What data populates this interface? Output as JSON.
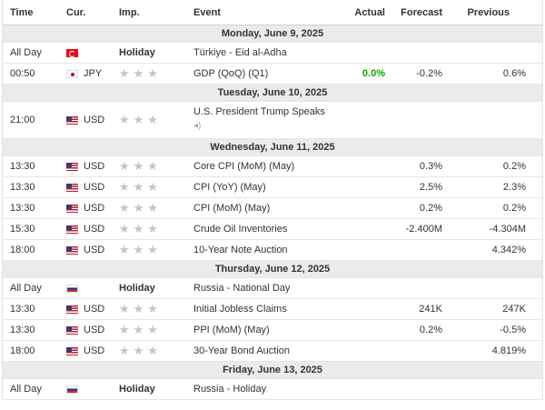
{
  "header": {
    "time": "Time",
    "currency": "Cur.",
    "importance": "Imp.",
    "event": "Event",
    "actual": "Actual",
    "forecast": "Forecast",
    "previous": "Previous"
  },
  "importance_glyph": "★★★",
  "days": [
    {
      "label": "Monday, June 9, 2025",
      "events": [
        {
          "time": "All Day",
          "flag": "turkey-flag-icon",
          "currency": "",
          "importance": "Holiday",
          "event": "Türkiye - Eid al-Adha",
          "actual": "",
          "forecast": "",
          "previous": ""
        },
        {
          "time": "00:50",
          "flag": "japan-flag-icon",
          "currency": "JPY",
          "importance": "",
          "event": "GDP (QoQ) (Q1)",
          "actual": "0.0%",
          "forecast": "-0.2%",
          "previous": "0.6%"
        }
      ]
    },
    {
      "label": "Tuesday, June 10, 2025",
      "events": [
        {
          "time": "21:00",
          "flag": "us-flag-icon",
          "currency": "USD",
          "importance": "",
          "event": "U.S. President Trump Speaks",
          "actual": "",
          "forecast": "",
          "previous": ""
        }
      ]
    },
    {
      "label": "Wednesday, June 11, 2025",
      "events": [
        {
          "time": "13:30",
          "flag": "us-flag-icon",
          "currency": "USD",
          "importance": "",
          "event": "Core CPI (MoM) (May)",
          "actual": "",
          "forecast": "0.3%",
          "previous": "0.2%"
        },
        {
          "time": "13:30",
          "flag": "us-flag-icon",
          "currency": "USD",
          "importance": "",
          "event": "CPI (YoY) (May)",
          "actual": "",
          "forecast": "2.5%",
          "previous": "2.3%"
        },
        {
          "time": "13:30",
          "flag": "us-flag-icon",
          "currency": "USD",
          "importance": "",
          "event": "CPI (MoM) (May)",
          "actual": "",
          "forecast": "0.2%",
          "previous": "0.2%"
        },
        {
          "time": "15:30",
          "flag": "us-flag-icon",
          "currency": "USD",
          "importance": "",
          "event": "Crude Oil Inventories",
          "actual": "",
          "forecast": "-2.400M",
          "previous": "-4.304M"
        },
        {
          "time": "18:00",
          "flag": "us-flag-icon",
          "currency": "USD",
          "importance": "",
          "event": "10-Year Note Auction",
          "actual": "",
          "forecast": "",
          "previous": "4.342%"
        }
      ]
    },
    {
      "label": "Thursday, June 12, 2025",
      "events": [
        {
          "time": "All Day",
          "flag": "russia-flag-icon",
          "currency": "",
          "importance": "Holiday",
          "event": "Russia - National Day",
          "actual": "",
          "forecast": "",
          "previous": ""
        },
        {
          "time": "13:30",
          "flag": "us-flag-icon",
          "currency": "USD",
          "importance": "",
          "event": "Initial Jobless Claims",
          "actual": "",
          "forecast": "241K",
          "previous": "247K"
        },
        {
          "time": "13:30",
          "flag": "us-flag-icon",
          "currency": "USD",
          "importance": "",
          "event": "PPI (MoM) (May)",
          "actual": "",
          "forecast": "0.2%",
          "previous": "-0.5%"
        },
        {
          "time": "18:00",
          "flag": "us-flag-icon",
          "currency": "USD",
          "importance": "",
          "event": "30-Year Bond Auction",
          "actual": "",
          "forecast": "",
          "previous": "4.819%"
        }
      ]
    },
    {
      "label": "Friday, June 13, 2025",
      "events": [
        {
          "time": "All Day",
          "flag": "russia-flag-icon",
          "currency": "",
          "importance": "Holiday",
          "event": "Russia - Holiday",
          "actual": "",
          "forecast": "",
          "previous": ""
        }
      ]
    }
  ],
  "colors": {
    "actual_positive": "#0ea600",
    "day_row_bg": "#ebebeb",
    "star_inactive": "#c4c4c4"
  }
}
